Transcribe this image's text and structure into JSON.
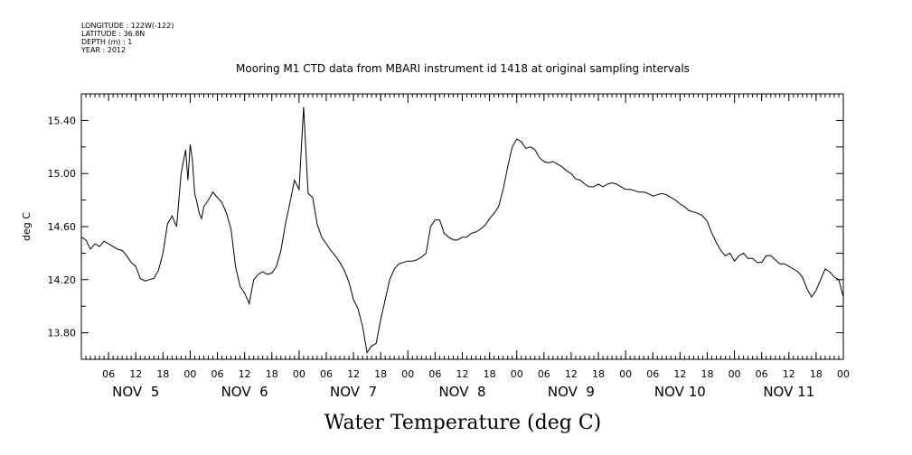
{
  "meta": {
    "longitude": "LONGITUDE : 122W(-122)",
    "latitude": "LATITUDE : 36.8N",
    "depth": "DEPTH (m) : 1",
    "year": "YEAR : 2012"
  },
  "chart_data": {
    "type": "line",
    "title": "Mooring M1 CTD data from MBARI instrument id 1418 at original sampling intervals",
    "xlabel": "Water Temperature (deg C)",
    "ylabel": "deg C",
    "xlim": [
      0,
      168
    ],
    "ylim": [
      13.6,
      15.6
    ],
    "yticks": [
      "13.80",
      "14.20",
      "14.60",
      "15.00",
      "15.40"
    ],
    "xtick_labels": [
      "06",
      "12",
      "18",
      "00",
      "06",
      "12",
      "18",
      "00",
      "06",
      "12",
      "18",
      "00",
      "06",
      "12",
      "18",
      "00",
      "06",
      "12",
      "18",
      "00",
      "06",
      "12",
      "18",
      "00",
      "06",
      "12",
      "18",
      "00"
    ],
    "day_labels": [
      "NOV  5",
      "NOV  6",
      "NOV  7",
      "NOV  8",
      "NOV  9",
      "NOV 10",
      "NOV 11"
    ],
    "grid": false,
    "series": [
      {
        "x": [
          0,
          1,
          2,
          3,
          4,
          5,
          6,
          7,
          8,
          9,
          10,
          11,
          12,
          13,
          14,
          15,
          16,
          17,
          18,
          19,
          20,
          21,
          22,
          23,
          23.5,
          24,
          24.5,
          25,
          25.5,
          26,
          26.5,
          27,
          28,
          29,
          30,
          31,
          32,
          33,
          34,
          35,
          36,
          37,
          38,
          39,
          40,
          41,
          42,
          43,
          44,
          45,
          46,
          47,
          48,
          49,
          50,
          51,
          52,
          53,
          54,
          55,
          56,
          57,
          58,
          59,
          60,
          61,
          62,
          63,
          64,
          65,
          66,
          67,
          68,
          69,
          70,
          71,
          72,
          73,
          74,
          75,
          76,
          77,
          78,
          79,
          80,
          81,
          82,
          83,
          84,
          85,
          86,
          87,
          88,
          89,
          90,
          91,
          92,
          93,
          94,
          95,
          96,
          97,
          98,
          99,
          100,
          101,
          102,
          103,
          104,
          105,
          106,
          107,
          108,
          109,
          110,
          111,
          112,
          113,
          114,
          115,
          116,
          117,
          118,
          119,
          120,
          121,
          122,
          123,
          124,
          125,
          126,
          127,
          128,
          129,
          130,
          131,
          132,
          133,
          134,
          135,
          136,
          137,
          138,
          139,
          140,
          141,
          142,
          143,
          144,
          145,
          146,
          147,
          148,
          149,
          150,
          151,
          152,
          153,
          154,
          155,
          156,
          157,
          158,
          159,
          160,
          161,
          162,
          163,
          164,
          165,
          166,
          167,
          168
        ],
        "y": [
          14.52,
          14.5,
          14.43,
          14.47,
          14.45,
          14.49,
          14.47,
          14.45,
          14.43,
          14.42,
          14.38,
          14.33,
          14.3,
          14.21,
          14.19,
          14.2,
          14.21,
          14.27,
          14.4,
          14.62,
          14.68,
          14.6,
          15.0,
          15.18,
          14.95,
          15.22,
          15.1,
          14.85,
          14.78,
          14.7,
          14.66,
          14.75,
          14.8,
          14.86,
          14.82,
          14.78,
          14.7,
          14.58,
          14.3,
          14.15,
          14.1,
          14.02,
          14.2,
          14.24,
          14.26,
          14.24,
          14.25,
          14.3,
          14.42,
          14.62,
          14.78,
          14.95,
          14.88,
          15.5,
          14.85,
          14.82,
          14.62,
          14.52,
          14.47,
          14.42,
          14.38,
          14.33,
          14.27,
          14.18,
          14.05,
          13.98,
          13.85,
          13.65,
          13.7,
          13.72,
          13.9,
          14.05,
          14.2,
          14.28,
          14.32,
          14.33,
          14.34,
          14.34,
          14.35,
          14.37,
          14.4,
          14.6,
          14.65,
          14.65,
          14.55,
          14.52,
          14.5,
          14.5,
          14.52,
          14.52,
          14.55,
          14.56,
          14.58,
          14.61,
          14.66,
          14.7,
          14.75,
          14.88,
          15.05,
          15.2,
          15.26,
          15.24,
          15.19,
          15.2,
          15.18,
          15.12,
          15.09,
          15.08,
          15.09,
          15.07,
          15.05,
          15.02,
          15.0,
          14.96,
          14.95,
          14.92,
          14.9,
          14.9,
          14.92,
          14.9,
          14.92,
          14.93,
          14.92,
          14.9,
          14.88,
          14.88,
          14.87,
          14.86,
          14.86,
          14.85,
          14.83,
          14.84,
          14.85,
          14.84,
          14.82,
          14.8,
          14.77,
          14.75,
          14.72,
          14.71,
          14.7,
          14.68,
          14.64,
          14.55,
          14.48,
          14.42,
          14.38,
          14.4,
          14.34,
          14.38,
          14.4,
          14.36,
          14.36,
          14.33,
          14.33,
          14.38,
          14.38,
          14.35,
          14.32,
          14.32,
          14.3,
          14.28,
          14.26,
          14.22,
          14.13,
          14.07,
          14.12,
          14.2,
          14.28,
          14.26,
          14.22,
          14.2,
          14.07
        ]
      }
    ]
  }
}
